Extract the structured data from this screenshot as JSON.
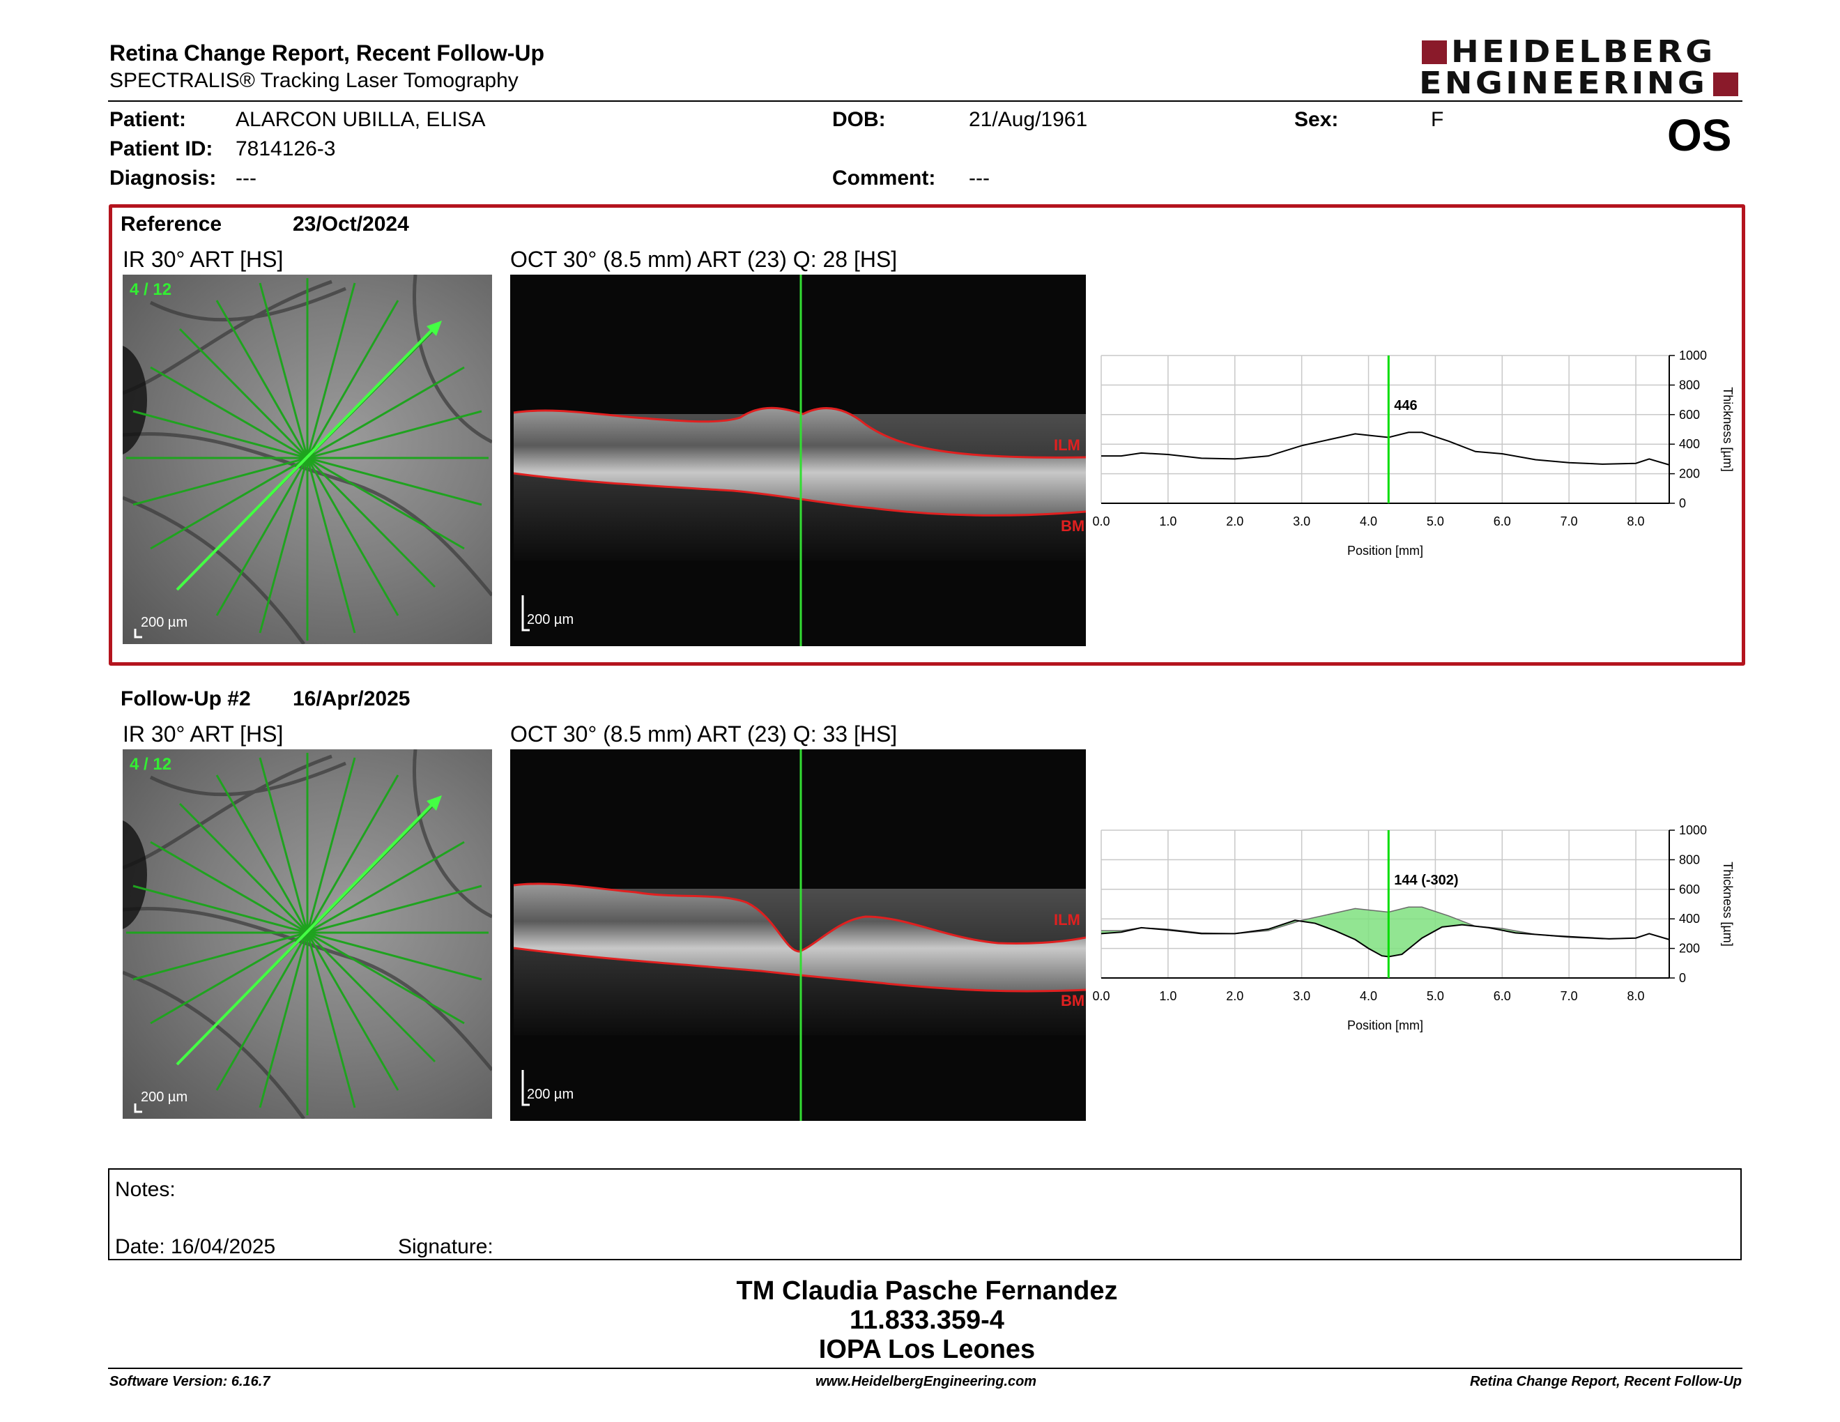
{
  "header": {
    "title": "Retina Change Report, Recent Follow-Up",
    "subtitle": "SPECTRALIS® Tracking Laser Tomography",
    "logo_line1": "HEIDELBERG",
    "logo_line2": "ENGINEERING",
    "eye": "OS"
  },
  "patient": {
    "patient_label": "Patient:",
    "patient_value": "ALARCON UBILLA, ELISA",
    "id_label": "Patient ID:",
    "id_value": "7814126-3",
    "diagnosis_label": "Diagnosis:",
    "diagnosis_value": "---",
    "dob_label": "DOB:",
    "dob_value": "21/Aug/1961",
    "comment_label": "Comment:",
    "comment_value": "---",
    "sex_label": "Sex:",
    "sex_value": "F"
  },
  "reference": {
    "label": "Reference",
    "date": "23/Oct/2024",
    "ir_title": "IR 30° ART [HS]",
    "oct_title": "OCT 30° (8.5 mm) ART (23) Q: 28 [HS]",
    "scan_index": "4 / 12",
    "scale_ir": "200 µm",
    "scale_oct": "200 µm",
    "ilm": "ILM",
    "bm": "BM",
    "marker_label": "446"
  },
  "followup": {
    "label": "Follow-Up #2",
    "date": "16/Apr/2025",
    "ir_title": "IR 30° ART [HS]",
    "oct_title": "OCT 30° (8.5 mm) ART (23) Q: 33 [HS]",
    "scan_index": "4 / 12",
    "scale_ir": "200 µm",
    "scale_oct": "200 µm",
    "ilm": "ILM",
    "bm": "BM",
    "marker_label": "144 (-302)"
  },
  "chart_data": [
    {
      "type": "line",
      "xlabel": "Position [mm]",
      "ylabel": "Thickness [µm]",
      "xlim": [
        0,
        8.5
      ],
      "ylim": [
        0,
        1000
      ],
      "x_ticks": [
        "0.0",
        "1.0",
        "2.0",
        "3.0",
        "4.0",
        "5.0",
        "6.0",
        "7.0",
        "8.0"
      ],
      "y_ticks": [
        "0",
        "200",
        "400",
        "600",
        "800",
        "1000"
      ],
      "grid": true,
      "marker_x": 4.3,
      "marker_label": "446",
      "series": [
        {
          "x": [
            0,
            0.3,
            0.6,
            1.0,
            1.5,
            2.0,
            2.5,
            3.0,
            3.5,
            3.8,
            4.1,
            4.3,
            4.6,
            4.8,
            5.2,
            5.6,
            6.0,
            6.5,
            7.0,
            7.5,
            8.0,
            8.2,
            8.5
          ],
          "values": [
            320,
            320,
            340,
            330,
            305,
            300,
            320,
            390,
            440,
            470,
            455,
            446,
            480,
            480,
            420,
            350,
            335,
            295,
            275,
            265,
            270,
            300,
            260
          ]
        }
      ]
    },
    {
      "type": "area",
      "xlabel": "Position [mm]",
      "ylabel": "Thickness [µm]",
      "xlim": [
        0,
        8.5
      ],
      "ylim": [
        0,
        1000
      ],
      "x_ticks": [
        "0.0",
        "1.0",
        "2.0",
        "3.0",
        "4.0",
        "5.0",
        "6.0",
        "7.0",
        "8.0"
      ],
      "y_ticks": [
        "0",
        "200",
        "400",
        "600",
        "800",
        "1000"
      ],
      "grid": true,
      "marker_x": 4.3,
      "marker_label": "144 (-302)",
      "series": [
        {
          "name": "Reference",
          "x": [
            0,
            0.3,
            0.6,
            1.0,
            1.5,
            2.0,
            2.5,
            3.0,
            3.5,
            3.8,
            4.1,
            4.3,
            4.6,
            4.8,
            5.2,
            5.6,
            6.0,
            6.5,
            7.0,
            7.5,
            8.0,
            8.2,
            8.5
          ],
          "values": [
            320,
            320,
            340,
            330,
            305,
            300,
            320,
            390,
            440,
            470,
            455,
            446,
            480,
            480,
            420,
            350,
            335,
            295,
            275,
            265,
            270,
            300,
            260
          ]
        },
        {
          "name": "Follow-Up",
          "x": [
            0,
            0.3,
            0.6,
            1.0,
            1.5,
            2.0,
            2.5,
            2.9,
            3.2,
            3.5,
            3.8,
            4.0,
            4.2,
            4.3,
            4.5,
            4.8,
            5.1,
            5.4,
            5.8,
            6.2,
            6.8,
            7.2,
            7.6,
            8.0,
            8.2,
            8.5
          ],
          "values": [
            300,
            310,
            340,
            325,
            300,
            300,
            330,
            390,
            370,
            320,
            260,
            200,
            150,
            144,
            160,
            270,
            345,
            360,
            340,
            305,
            285,
            275,
            265,
            270,
            300,
            260
          ]
        }
      ]
    }
  ],
  "notes": {
    "notes_label": "Notes:",
    "date_label": "Date: 16/04/2025",
    "signature_label": "Signature:"
  },
  "signoff": {
    "name": "TM Claudia Pasche Fernandez",
    "id": "11.833.359-4",
    "place": "IOPA Los Leones"
  },
  "footer": {
    "left": "Software Version: 6.16.7",
    "center": "www.HeidelbergEngineering.com",
    "right": "Retina Change Report, Recent Follow-Up"
  },
  "colors": {
    "brand": "#8a1a2a",
    "reference_box": "#b4141e",
    "marker": "#00dd00",
    "layer_line": "#e02020",
    "fill_loss": "#7fe07f"
  }
}
